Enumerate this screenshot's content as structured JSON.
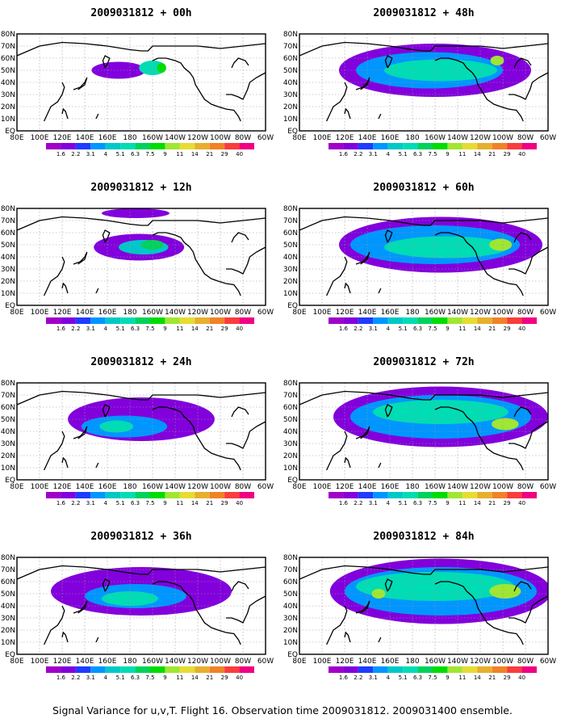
{
  "caption": "Signal Variance for u,v,T. Flight 16. Observation time 2009031812. 2009031400 ensemble.",
  "colorbar": {
    "labels": [
      "1.6",
      "2.2",
      "3.1",
      "4",
      "5.1",
      "6.3",
      "7.5",
      "9",
      "11",
      "14",
      "21",
      "29",
      "40"
    ],
    "colors": [
      "#a000c8",
      "#8200dc",
      "#1e3cff",
      "#0096ff",
      "#00c8c8",
      "#00dcb4",
      "#00d25a",
      "#00dc00",
      "#a0e632",
      "#e6dc32",
      "#e6af2d",
      "#f08228",
      "#fa3c3c",
      "#f00082"
    ]
  },
  "x_ticks": [
    "80E",
    "100E",
    "120E",
    "140E",
    "160E",
    "180",
    "160W",
    "140W",
    "120W",
    "100W",
    "80W",
    "60W"
  ],
  "y_ticks": [
    "80N",
    "70N",
    "60N",
    "50N",
    "40N",
    "30N",
    "20N",
    "10N",
    "EQ"
  ],
  "chart_data": [
    {
      "type": "heatmap",
      "title": "2009031812 + 00h",
      "lead_hours": 0,
      "lon_range": [
        "80E",
        "60W"
      ],
      "lat_range": [
        "EQ",
        "80N"
      ],
      "blobs": [
        {
          "lon": 170,
          "lat": 50,
          "rx": 24,
          "ry": 7,
          "value": 1.8
        },
        {
          "lon": 200,
          "lat": 52,
          "rx": 12,
          "ry": 6,
          "value": 5.1
        },
        {
          "lon": 208,
          "lat": 52,
          "rx": 4,
          "ry": 4,
          "value": 7.5
        }
      ]
    },
    {
      "type": "heatmap",
      "title": "2009031812 + 12h",
      "lead_hours": 12,
      "lon_range": [
        "80E",
        "60W"
      ],
      "lat_range": [
        "EQ",
        "80N"
      ],
      "blobs": [
        {
          "lon": 188,
          "lat": 48,
          "rx": 40,
          "ry": 11,
          "value": 1.8
        },
        {
          "lon": 185,
          "lat": 76,
          "rx": 30,
          "ry": 4,
          "value": 1.8
        },
        {
          "lon": 192,
          "lat": 48,
          "rx": 22,
          "ry": 6,
          "value": 4.0
        },
        {
          "lon": 200,
          "lat": 50,
          "rx": 10,
          "ry": 4,
          "value": 6.3
        }
      ]
    },
    {
      "type": "heatmap",
      "title": "2009031812 + 24h",
      "lead_hours": 24,
      "lon_range": [
        "80E",
        "60W"
      ],
      "lat_range": [
        "EQ",
        "80N"
      ],
      "blobs": [
        {
          "lon": 190,
          "lat": 50,
          "rx": 65,
          "ry": 18,
          "value": 1.8
        },
        {
          "lon": 175,
          "lat": 44,
          "rx": 38,
          "ry": 9,
          "value": 3.1
        },
        {
          "lon": 168,
          "lat": 44,
          "rx": 15,
          "ry": 5,
          "value": 5.1
        }
      ]
    },
    {
      "type": "heatmap",
      "title": "2009031812 + 36h",
      "lead_hours": 36,
      "lon_range": [
        "80E",
        "60W"
      ],
      "lat_range": [
        "EQ",
        "80N"
      ],
      "blobs": [
        {
          "lon": 190,
          "lat": 52,
          "rx": 80,
          "ry": 20,
          "value": 1.8
        },
        {
          "lon": 185,
          "lat": 48,
          "rx": 45,
          "ry": 10,
          "value": 3.1
        },
        {
          "lon": 180,
          "lat": 46,
          "rx": 25,
          "ry": 6,
          "value": 5.1
        }
      ]
    },
    {
      "type": "heatmap",
      "title": "2009031812 + 48h",
      "lead_hours": 48,
      "lon_range": [
        "80E",
        "60W"
      ],
      "lat_range": [
        "EQ",
        "80N"
      ],
      "blobs": [
        {
          "lon": 200,
          "lat": 50,
          "rx": 85,
          "ry": 22,
          "value": 1.8
        },
        {
          "lon": 195,
          "lat": 50,
          "rx": 65,
          "ry": 15,
          "value": 3.1
        },
        {
          "lon": 205,
          "lat": 50,
          "rx": 50,
          "ry": 9,
          "value": 5.1
        },
        {
          "lon": 255,
          "lat": 58,
          "rx": 6,
          "ry": 4,
          "value": 9
        }
      ]
    },
    {
      "type": "heatmap",
      "title": "2009031812 + 60h",
      "lead_hours": 60,
      "lon_range": [
        "80E",
        "60W"
      ],
      "lat_range": [
        "EQ",
        "80N"
      ],
      "blobs": [
        {
          "lon": 205,
          "lat": 50,
          "rx": 90,
          "ry": 23,
          "value": 1.8
        },
        {
          "lon": 200,
          "lat": 50,
          "rx": 75,
          "ry": 16,
          "value": 3.1
        },
        {
          "lon": 210,
          "lat": 48,
          "rx": 55,
          "ry": 9,
          "value": 5.1
        },
        {
          "lon": 258,
          "lat": 50,
          "rx": 10,
          "ry": 5,
          "value": 9
        }
      ]
    },
    {
      "type": "heatmap",
      "title": "2009031812 + 72h",
      "lead_hours": 72,
      "lon_range": [
        "80E",
        "60W"
      ],
      "lat_range": [
        "EQ",
        "80N"
      ],
      "blobs": [
        {
          "lon": 205,
          "lat": 52,
          "rx": 95,
          "ry": 25,
          "value": 1.8
        },
        {
          "lon": 205,
          "lat": 52,
          "rx": 80,
          "ry": 18,
          "value": 3.1
        },
        {
          "lon": 205,
          "lat": 56,
          "rx": 60,
          "ry": 10,
          "value": 5.1
        },
        {
          "lon": 262,
          "lat": 46,
          "rx": 12,
          "ry": 5,
          "value": 9
        }
      ]
    },
    {
      "type": "heatmap",
      "title": "2009031812 + 84h",
      "lead_hours": 84,
      "lon_range": [
        "80E",
        "60W"
      ],
      "lat_range": [
        "EQ",
        "80N"
      ],
      "blobs": [
        {
          "lon": 205,
          "lat": 52,
          "rx": 98,
          "ry": 27,
          "value": 1.8
        },
        {
          "lon": 205,
          "lat": 52,
          "rx": 85,
          "ry": 20,
          "value": 3.1
        },
        {
          "lon": 200,
          "lat": 56,
          "rx": 70,
          "ry": 12,
          "value": 5.1
        },
        {
          "lon": 262,
          "lat": 52,
          "rx": 14,
          "ry": 6,
          "value": 9
        },
        {
          "lon": 150,
          "lat": 50,
          "rx": 6,
          "ry": 4,
          "value": 9
        }
      ]
    }
  ]
}
